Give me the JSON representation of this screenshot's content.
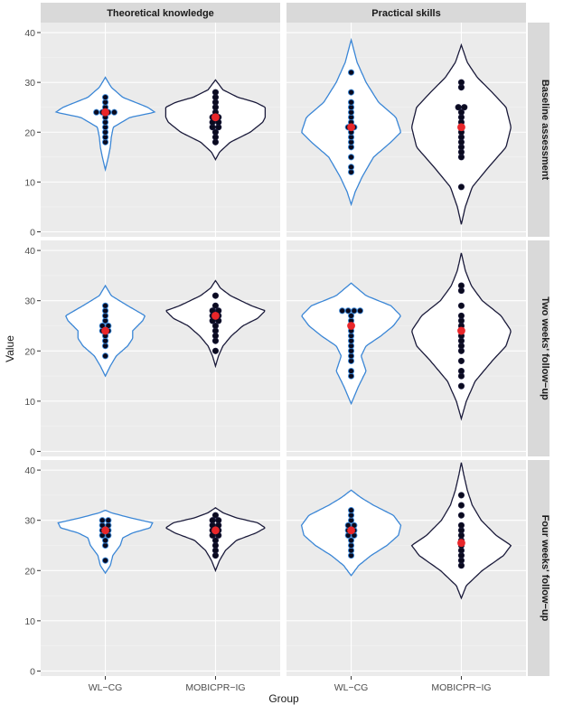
{
  "chart_data": {
    "type": "violin",
    "ylabel": "Value",
    "xlabel": "Group",
    "categories": [
      "WL−CG",
      "MOBICPR−IG"
    ],
    "columns": [
      "Theoretical knowledge",
      "Practical skills"
    ],
    "rows": [
      "Baseline assessment",
      "Two weeks' follow−up",
      "Four weeks' follow−up"
    ],
    "ylim": [
      -1,
      42
    ],
    "yticks": [
      0,
      10,
      20,
      30,
      40
    ],
    "colors": {
      "WL−CG": "#3a86d6",
      "MOBICPR−IG": "#1a1a3a",
      "mean": "#e8262a",
      "point": "#0a0a1e",
      "panel_bg": "#ebebeb",
      "strip_bg": "#d9d9d9"
    },
    "panels": [
      {
        "row": 0,
        "col": 0,
        "groups": [
          {
            "name": "WL−CG",
            "range": [
              12.5,
              31
            ],
            "mean": 24,
            "points": [
              18,
              19,
              20,
              21,
              22,
              23,
              24,
              24,
              24,
              24,
              25,
              26,
              27
            ],
            "density": [
              [
                12.5,
                0
              ],
              [
                15,
                0.06
              ],
              [
                17,
                0.1
              ],
              [
                19,
                0.12
              ],
              [
                21,
                0.16
              ],
              [
                23,
                0.5
              ],
              [
                24,
                1.0
              ],
              [
                25,
                0.85
              ],
              [
                27,
                0.35
              ],
              [
                29,
                0.12
              ],
              [
                31,
                0
              ]
            ]
          },
          {
            "name": "MOBICPR−IG",
            "range": [
              14.5,
              30.5
            ],
            "mean": 23,
            "points": [
              18,
              19,
              20,
              21,
              21,
              22,
              22,
              23,
              23,
              24,
              25,
              26,
              27,
              28
            ],
            "density": [
              [
                14.5,
                0
              ],
              [
                16,
                0.08
              ],
              [
                18,
                0.3
              ],
              [
                20,
                0.7
              ],
              [
                22,
                0.95
              ],
              [
                23,
                1.0
              ],
              [
                25,
                1.0
              ],
              [
                26,
                0.8
              ],
              [
                27,
                0.45
              ],
              [
                28.5,
                0.15
              ],
              [
                30.5,
                0
              ]
            ]
          }
        ]
      },
      {
        "row": 0,
        "col": 1,
        "groups": [
          {
            "name": "WL−CG",
            "range": [
              5.5,
              38.5
            ],
            "mean": 21,
            "points": [
              12,
              13,
              15,
              17,
              18,
              19,
              20,
              21,
              21,
              22,
              23,
              24,
              25,
              26,
              28,
              32
            ],
            "density": [
              [
                5.5,
                0
              ],
              [
                8,
                0.08
              ],
              [
                11,
                0.22
              ],
              [
                15,
                0.45
              ],
              [
                18,
                0.8
              ],
              [
                20,
                1.0
              ],
              [
                23,
                0.9
              ],
              [
                26,
                0.55
              ],
              [
                30,
                0.3
              ],
              [
                34,
                0.12
              ],
              [
                38.5,
                0
              ]
            ]
          },
          {
            "name": "MOBICPR−IG",
            "range": [
              1.5,
              37.5
            ],
            "mean": 21,
            "points": [
              9,
              15,
              16,
              17,
              18,
              19,
              20,
              21,
              22,
              23,
              24,
              25,
              25,
              29,
              30
            ],
            "density": [
              [
                1.5,
                0
              ],
              [
                5,
                0.08
              ],
              [
                9,
                0.22
              ],
              [
                13,
                0.55
              ],
              [
                17,
                0.9
              ],
              [
                21,
                1.0
              ],
              [
                25,
                0.9
              ],
              [
                28,
                0.62
              ],
              [
                31,
                0.32
              ],
              [
                34,
                0.12
              ],
              [
                37.5,
                0
              ]
            ]
          }
        ]
      },
      {
        "row": 1,
        "col": 0,
        "groups": [
          {
            "name": "WL−CG",
            "range": [
              15,
              33
            ],
            "mean": 24,
            "points": [
              19,
              21,
              22,
              23,
              24,
              24,
              25,
              25,
              26,
              27,
              28,
              29
            ],
            "density": [
              [
                15,
                0
              ],
              [
                17,
                0.1
              ],
              [
                19,
                0.22
              ],
              [
                21,
                0.45
              ],
              [
                22.5,
                0.55
              ],
              [
                24,
                0.55
              ],
              [
                26,
                0.75
              ],
              [
                27,
                0.8
              ],
              [
                29,
                0.45
              ],
              [
                31,
                0.12
              ],
              [
                33,
                0
              ]
            ]
          },
          {
            "name": "MOBICPR−IG",
            "range": [
              17,
              34
            ],
            "mean": 27,
            "points": [
              20,
              22,
              23,
              24,
              25,
              26,
              26,
              27,
              27,
              28,
              28,
              29,
              31
            ],
            "density": [
              [
                17,
                0
              ],
              [
                19,
                0.06
              ],
              [
                21,
                0.15
              ],
              [
                23,
                0.32
              ],
              [
                25,
                0.55
              ],
              [
                26.5,
                0.85
              ],
              [
                28,
                1.0
              ],
              [
                29,
                0.72
              ],
              [
                31,
                0.3
              ],
              [
                32.5,
                0.1
              ],
              [
                34,
                0
              ]
            ]
          }
        ]
      },
      {
        "row": 1,
        "col": 1,
        "groups": [
          {
            "name": "WL−CG",
            "range": [
              9.5,
              33.5
            ],
            "mean": 25,
            "points": [
              15,
              16,
              18,
              19,
              20,
              21,
              22,
              23,
              24,
              25,
              26,
              27,
              28,
              28,
              28,
              28
            ],
            "density": [
              [
                9.5,
                0
              ],
              [
                13,
                0.15
              ],
              [
                16,
                0.3
              ],
              [
                19,
                0.2
              ],
              [
                21,
                0.3
              ],
              [
                23,
                0.6
              ],
              [
                25,
                0.85
              ],
              [
                27,
                1.0
              ],
              [
                29,
                0.8
              ],
              [
                31,
                0.3
              ],
              [
                33.5,
                0
              ]
            ]
          },
          {
            "name": "MOBICPR−IG",
            "range": [
              6.5,
              39.5
            ],
            "mean": 24,
            "points": [
              13,
              15,
              16,
              18,
              20,
              21,
              22,
              23,
              24,
              25,
              26,
              27,
              29,
              32,
              33
            ],
            "density": [
              [
                6.5,
                0
              ],
              [
                10,
                0.1
              ],
              [
                14,
                0.28
              ],
              [
                18,
                0.62
              ],
              [
                21,
                0.9
              ],
              [
                24,
                1.0
              ],
              [
                27,
                0.8
              ],
              [
                30,
                0.42
              ],
              [
                33,
                0.2
              ],
              [
                36,
                0.08
              ],
              [
                39.5,
                0
              ]
            ]
          }
        ]
      },
      {
        "row": 2,
        "col": 0,
        "groups": [
          {
            "name": "WL−CG",
            "range": [
              19.5,
              32
            ],
            "mean": 28,
            "points": [
              22,
              25,
              26,
              27,
              27,
              28,
              28,
              29,
              29,
              30,
              30
            ],
            "density": [
              [
                19.5,
                0
              ],
              [
                21,
                0.1
              ],
              [
                23,
                0.15
              ],
              [
                25,
                0.3
              ],
              [
                26.5,
                0.35
              ],
              [
                27.5,
                0.55
              ],
              [
                28.5,
                0.9
              ],
              [
                29.5,
                0.95
              ],
              [
                30.5,
                0.5
              ],
              [
                31.5,
                0.12
              ],
              [
                32,
                0
              ]
            ]
          },
          {
            "name": "MOBICPR−IG",
            "range": [
              20,
              32.5
            ],
            "mean": 28,
            "points": [
              23,
              24,
              25,
              26,
              27,
              27,
              28,
              28,
              29,
              29,
              30,
              30,
              31
            ],
            "density": [
              [
                20,
                0
              ],
              [
                22,
                0.08
              ],
              [
                24,
                0.2
              ],
              [
                26,
                0.42
              ],
              [
                27.5,
                0.82
              ],
              [
                28.5,
                1.0
              ],
              [
                29.5,
                0.85
              ],
              [
                30.5,
                0.42
              ],
              [
                31.5,
                0.15
              ],
              [
                32.5,
                0
              ]
            ]
          }
        ]
      },
      {
        "row": 2,
        "col": 1,
        "groups": [
          {
            "name": "WL−CG",
            "range": [
              19,
              36
            ],
            "mean": 28,
            "points": [
              23,
              24,
              25,
              26,
              27,
              27,
              28,
              28,
              29,
              29,
              30,
              31,
              32
            ],
            "density": [
              [
                19,
                0
              ],
              [
                21,
                0.15
              ],
              [
                23,
                0.4
              ],
              [
                25,
                0.72
              ],
              [
                27,
                0.95
              ],
              [
                29,
                1.0
              ],
              [
                31,
                0.85
              ],
              [
                33,
                0.45
              ],
              [
                34.5,
                0.2
              ],
              [
                36,
                0
              ]
            ]
          },
          {
            "name": "MOBICPR−IG",
            "range": [
              14.5,
              41.5
            ],
            "mean": 25.5,
            "points": [
              21,
              22,
              23,
              24,
              25,
              26,
              27,
              28,
              29,
              31,
              33,
              35
            ],
            "density": [
              [
                14.5,
                0
              ],
              [
                17,
                0.1
              ],
              [
                20,
                0.42
              ],
              [
                23,
                0.85
              ],
              [
                25,
                1.0
              ],
              [
                27,
                0.7
              ],
              [
                30,
                0.4
              ],
              [
                33,
                0.22
              ],
              [
                36,
                0.12
              ],
              [
                39,
                0.05
              ],
              [
                41.5,
                0
              ]
            ]
          }
        ]
      }
    ]
  }
}
